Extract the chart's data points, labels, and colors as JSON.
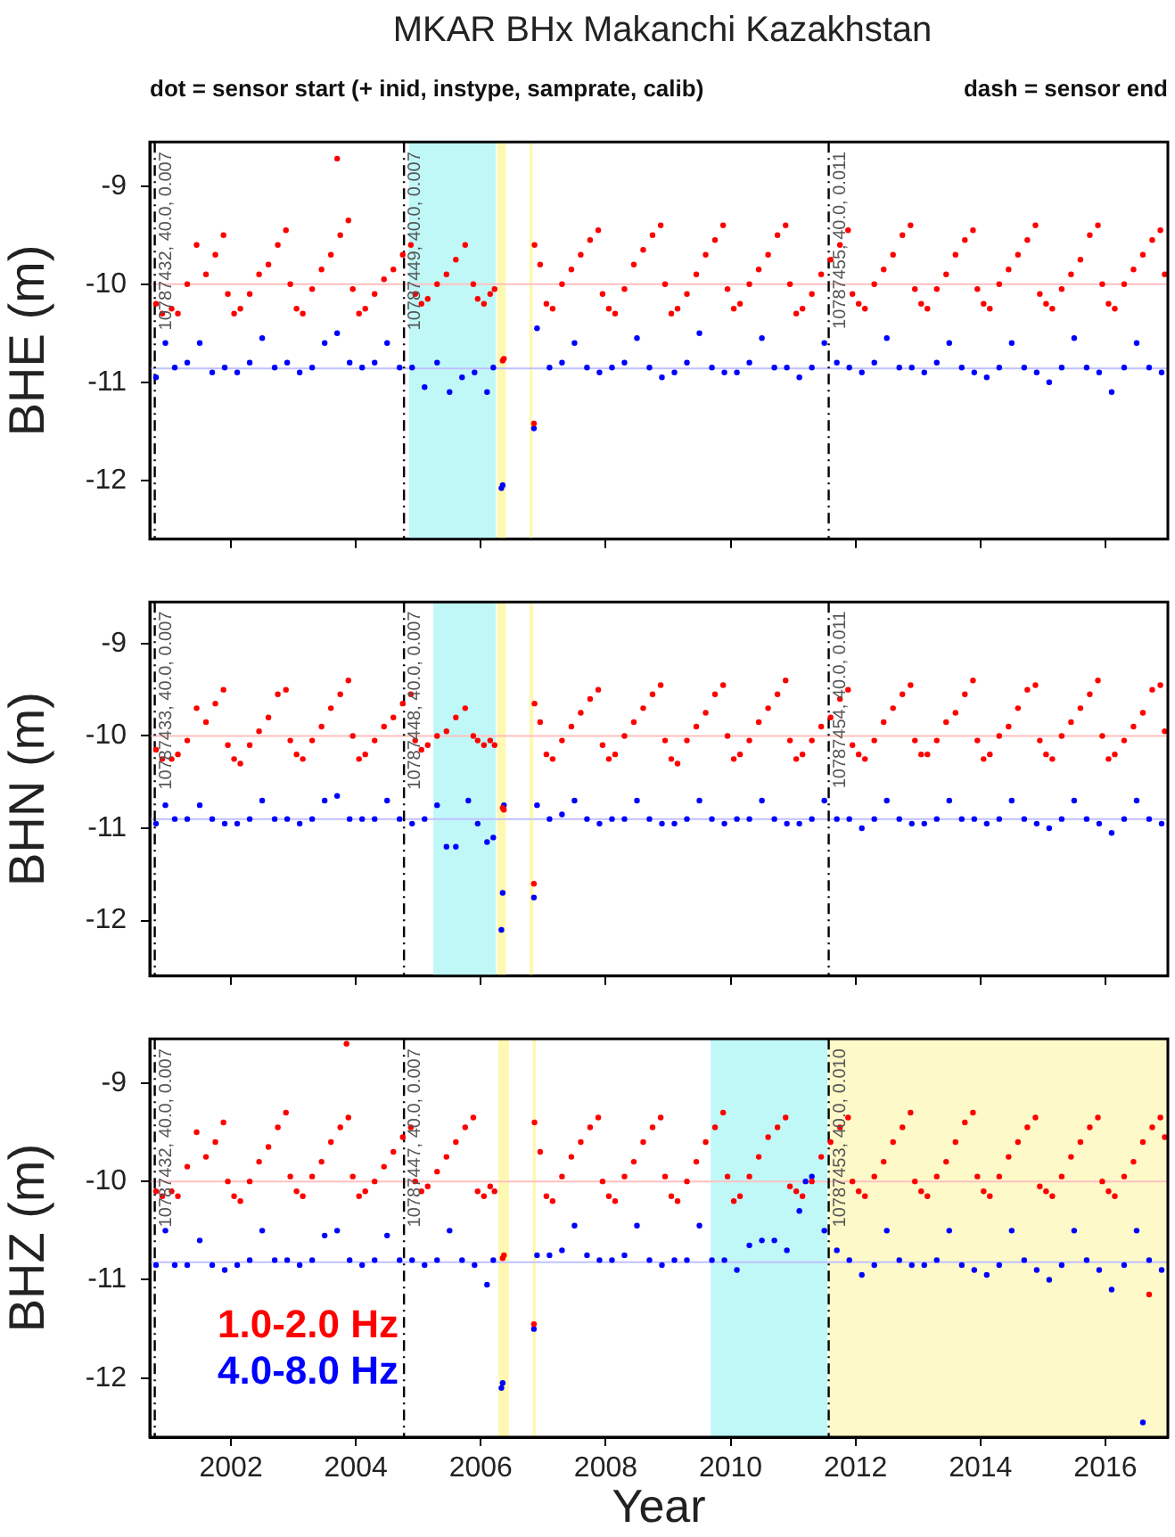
{
  "chart_data": [
    {
      "type": "scatter",
      "title": "MKAR BHx Makanchi Kazakhstan",
      "subtitle": "dot = sensor start (+ inid, instype, samprate, calib)",
      "annotations": [
        "dash = sensor end",
        {
          "text": "10787432, 40.0, 0.007",
          "x": 2000.78,
          "y": -8.65
        },
        {
          "text": "10787449, 40.0, 0.007",
          "x": 2004.77,
          "y": -8.65
        },
        {
          "text": "10787455, 40.0, 0.011",
          "x": 2011.57,
          "y": -8.65
        }
      ],
      "ylabel": "BHE (m)",
      "xlim": [
        2000.7,
        2017.0
      ],
      "xticks": [
        2002,
        2004,
        2006,
        2008,
        2010,
        2012,
        2014,
        2016
      ],
      "ylim": [
        -12.6,
        -8.55
      ],
      "yticks": [
        -12,
        -11,
        -10,
        -9
      ],
      "tick_labels": "y",
      "marker": "circle",
      "bands": [
        {
          "axis": "x",
          "from": 2004.85,
          "to": 2006.24,
          "color": "#c0f8f8"
        },
        {
          "axis": "x",
          "from": 2006.26,
          "to": 2006.4,
          "color": "#fff8b0"
        },
        {
          "axis": "x",
          "from": 2006.78,
          "to": 2006.83,
          "color": "#fff8b0"
        }
      ],
      "ref_lines": [
        {
          "axis": "y",
          "value": -10.0,
          "color": "#ffc0c0",
          "line_style": "solid"
        },
        {
          "axis": "y",
          "value": -10.86,
          "color": "#c0c0ff",
          "line_style": "solid"
        },
        {
          "axis": "x",
          "value": 2000.78,
          "color": "#000000",
          "line_style": "dashed"
        },
        {
          "axis": "x",
          "value": 2004.77,
          "color": "#000000",
          "line_style": "dashed"
        },
        {
          "axis": "x",
          "value": 2011.57,
          "color": "#000000",
          "line_style": "dashed"
        }
      ],
      "series": [
        {
          "color": "#ff0000",
          "x": [
            2000.8,
            2000.9,
            2001.05,
            2001.15,
            2001.3,
            2001.45,
            2001.6,
            2001.75,
            2001.88,
            2001.95,
            2002.05,
            2002.15,
            2002.3,
            2002.45,
            2002.6,
            2002.75,
            2002.88,
            2002.95,
            2003.05,
            2003.15,
            2003.3,
            2003.45,
            2003.6,
            2003.7,
            2003.75,
            2003.88,
            2003.95,
            2004.05,
            2004.15,
            2004.3,
            2004.45,
            2004.6,
            2004.75,
            2004.88,
            2004.95,
            2005.05,
            2005.15,
            2005.3,
            2005.45,
            2005.6,
            2005.75,
            2005.88,
            2005.95,
            2006.05,
            2006.15,
            2006.22,
            2006.35,
            2006.37,
            2006.85,
            2006.86,
            2006.95,
            2007.05,
            2007.15,
            2007.3,
            2007.45,
            2007.6,
            2007.75,
            2007.88,
            2007.95,
            2008.05,
            2008.15,
            2008.3,
            2008.45,
            2008.6,
            2008.75,
            2008.88,
            2008.95,
            2009.05,
            2009.15,
            2009.3,
            2009.45,
            2009.6,
            2009.75,
            2009.88,
            2009.95,
            2010.05,
            2010.15,
            2010.3,
            2010.45,
            2010.6,
            2010.75,
            2010.88,
            2010.95,
            2011.05,
            2011.15,
            2011.3,
            2011.45,
            2011.6,
            2011.75,
            2011.88,
            2011.95,
            2012.05,
            2012.15,
            2012.3,
            2012.45,
            2012.6,
            2012.75,
            2012.88,
            2012.95,
            2013.05,
            2013.15,
            2013.3,
            2013.45,
            2013.6,
            2013.75,
            2013.88,
            2013.95,
            2014.05,
            2014.15,
            2014.3,
            2014.45,
            2014.6,
            2014.75,
            2014.88,
            2014.95,
            2015.05,
            2015.15,
            2015.3,
            2015.45,
            2015.6,
            2015.75,
            2015.88,
            2015.95,
            2016.05,
            2016.15,
            2016.3,
            2016.45,
            2016.6,
            2016.75,
            2016.88,
            2016.95
          ],
          "values": [
            -10.2,
            -10.3,
            -10.25,
            -10.3,
            -10.0,
            -9.6,
            -9.9,
            -9.7,
            -9.5,
            -10.1,
            -10.3,
            -10.25,
            -10.1,
            -9.9,
            -9.8,
            -9.6,
            -9.45,
            -10.0,
            -10.25,
            -10.3,
            -10.05,
            -9.85,
            -9.7,
            -8.72,
            -9.5,
            -9.35,
            -10.05,
            -10.3,
            -10.25,
            -10.1,
            -9.95,
            -9.85,
            -9.7,
            -9.6,
            -10.1,
            -10.2,
            -10.15,
            -10.0,
            -9.9,
            -9.75,
            -9.6,
            -10.0,
            -10.15,
            -10.2,
            -10.1,
            -10.05,
            -10.78,
            -10.76,
            -11.42,
            -9.6,
            -9.8,
            -10.2,
            -10.25,
            -10.0,
            -9.85,
            -9.7,
            -9.55,
            -9.45,
            -10.1,
            -10.25,
            -10.3,
            -10.05,
            -9.8,
            -9.65,
            -9.5,
            -9.4,
            -10.0,
            -10.3,
            -10.25,
            -10.1,
            -9.9,
            -9.7,
            -9.55,
            -9.4,
            -10.05,
            -10.25,
            -10.2,
            -10.0,
            -9.85,
            -9.7,
            -9.5,
            -9.4,
            -10.0,
            -10.3,
            -10.25,
            -10.1,
            -9.9,
            -9.75,
            -9.6,
            -9.45,
            -10.1,
            -10.2,
            -10.25,
            -10.0,
            -9.85,
            -9.7,
            -9.5,
            -9.4,
            -10.05,
            -10.2,
            -10.25,
            -10.05,
            -9.9,
            -9.7,
            -9.55,
            -9.45,
            -10.05,
            -10.2,
            -10.25,
            -10.0,
            -9.85,
            -9.7,
            -9.55,
            -9.4,
            -10.1,
            -10.2,
            -10.25,
            -10.05,
            -9.9,
            -9.75,
            -9.5,
            -9.4,
            -10.0,
            -10.2,
            -10.25,
            -10.0,
            -9.85,
            -9.7,
            -9.55,
            -9.45,
            -9.9
          ]
        },
        {
          "color": "#0000ff",
          "x": [
            2000.8,
            2000.95,
            2001.1,
            2001.3,
            2001.5,
            2001.7,
            2001.9,
            2002.1,
            2002.3,
            2002.5,
            2002.7,
            2002.9,
            2003.1,
            2003.3,
            2003.5,
            2003.7,
            2003.9,
            2004.1,
            2004.3,
            2004.5,
            2004.7,
            2004.9,
            2005.1,
            2005.3,
            2005.5,
            2005.7,
            2005.9,
            2006.1,
            2006.2,
            2006.33,
            2006.35,
            2006.85,
            2006.9,
            2007.1,
            2007.3,
            2007.5,
            2007.7,
            2007.9,
            2008.1,
            2008.3,
            2008.5,
            2008.7,
            2008.9,
            2009.1,
            2009.3,
            2009.5,
            2009.7,
            2009.9,
            2010.1,
            2010.3,
            2010.5,
            2010.7,
            2010.9,
            2011.1,
            2011.3,
            2011.5,
            2011.7,
            2011.9,
            2012.1,
            2012.3,
            2012.5,
            2012.7,
            2012.9,
            2013.1,
            2013.3,
            2013.5,
            2013.7,
            2013.9,
            2014.1,
            2014.3,
            2014.5,
            2014.7,
            2014.9,
            2015.1,
            2015.3,
            2015.5,
            2015.7,
            2015.9,
            2016.1,
            2016.3,
            2016.5,
            2016.7,
            2016.9
          ],
          "values": [
            -10.95,
            -10.6,
            -10.85,
            -10.8,
            -10.6,
            -10.9,
            -10.85,
            -10.9,
            -10.8,
            -10.55,
            -10.85,
            -10.8,
            -10.9,
            -10.85,
            -10.6,
            -10.5,
            -10.8,
            -10.85,
            -10.8,
            -10.6,
            -10.85,
            -10.85,
            -11.05,
            -10.8,
            -11.1,
            -10.95,
            -10.9,
            -11.1,
            -10.85,
            -12.08,
            -12.05,
            -11.47,
            -10.45,
            -10.85,
            -10.8,
            -10.6,
            -10.85,
            -10.9,
            -10.85,
            -10.8,
            -10.55,
            -10.85,
            -10.95,
            -10.9,
            -10.8,
            -10.5,
            -10.85,
            -10.9,
            -10.9,
            -10.8,
            -10.55,
            -10.85,
            -10.85,
            -10.95,
            -10.85,
            -10.6,
            -10.8,
            -10.85,
            -10.9,
            -10.8,
            -10.55,
            -10.85,
            -10.85,
            -10.9,
            -10.8,
            -10.6,
            -10.85,
            -10.9,
            -10.95,
            -10.85,
            -10.6,
            -10.85,
            -10.9,
            -11.0,
            -10.85,
            -10.55,
            -10.85,
            -10.9,
            -11.1,
            -10.85,
            -10.6,
            -10.85,
            -10.9
          ]
        }
      ]
    },
    {
      "type": "scatter",
      "annotations": [
        {
          "text": "10787433, 40.0, 0.007",
          "x": 2000.78,
          "y": -8.65
        },
        {
          "text": "10787448, 40.0, 0.007",
          "x": 2004.77,
          "y": -8.65
        },
        {
          "text": "10787454, 40.0, 0.011",
          "x": 2011.57,
          "y": -8.65
        }
      ],
      "ylabel": "BHN (m)",
      "xlim": [
        2000.7,
        2017.0
      ],
      "xticks": [
        2002,
        2004,
        2006,
        2008,
        2010,
        2012,
        2014,
        2016
      ],
      "ylim": [
        -12.6,
        -8.55
      ],
      "yticks": [
        -12,
        -11,
        -10,
        -9
      ],
      "tick_labels": "y",
      "marker": "circle",
      "bands": [
        {
          "axis": "x",
          "from": 2005.24,
          "to": 2006.24,
          "color": "#c0f8f8"
        },
        {
          "axis": "x",
          "from": 2006.26,
          "to": 2006.4,
          "color": "#fff8b0"
        },
        {
          "axis": "x",
          "from": 2006.78,
          "to": 2006.84,
          "color": "#fff8b0"
        }
      ],
      "ref_lines": [
        {
          "axis": "y",
          "value": -10.0,
          "color": "#ffc0c0",
          "line_style": "solid"
        },
        {
          "axis": "y",
          "value": -10.9,
          "color": "#c0c0ff",
          "line_style": "solid"
        },
        {
          "axis": "x",
          "value": 2000.78,
          "color": "#000000",
          "line_style": "dashed"
        },
        {
          "axis": "x",
          "value": 2004.77,
          "color": "#000000",
          "line_style": "dashed"
        },
        {
          "axis": "x",
          "value": 2011.57,
          "color": "#000000",
          "line_style": "dashed"
        }
      ],
      "series": [
        {
          "color": "#ff0000",
          "x": [
            2000.8,
            2000.9,
            2001.05,
            2001.15,
            2001.3,
            2001.45,
            2001.6,
            2001.75,
            2001.88,
            2001.95,
            2002.05,
            2002.15,
            2002.3,
            2002.45,
            2002.6,
            2002.75,
            2002.88,
            2002.95,
            2003.05,
            2003.15,
            2003.3,
            2003.45,
            2003.6,
            2003.75,
            2003.88,
            2003.95,
            2004.05,
            2004.15,
            2004.3,
            2004.45,
            2004.6,
            2004.75,
            2004.88,
            2004.95,
            2005.05,
            2005.15,
            2005.3,
            2005.45,
            2005.6,
            2005.75,
            2005.88,
            2005.95,
            2006.05,
            2006.15,
            2006.22,
            2006.35,
            2006.37,
            2006.85,
            2006.86,
            2006.95,
            2007.05,
            2007.15,
            2007.3,
            2007.45,
            2007.6,
            2007.75,
            2007.88,
            2007.95,
            2008.05,
            2008.15,
            2008.3,
            2008.45,
            2008.6,
            2008.75,
            2008.88,
            2008.95,
            2009.05,
            2009.15,
            2009.3,
            2009.45,
            2009.6,
            2009.75,
            2009.88,
            2009.95,
            2010.05,
            2010.15,
            2010.3,
            2010.45,
            2010.6,
            2010.75,
            2010.88,
            2010.95,
            2011.05,
            2011.15,
            2011.3,
            2011.45,
            2011.6,
            2011.75,
            2011.88,
            2011.95,
            2012.05,
            2012.15,
            2012.3,
            2012.45,
            2012.6,
            2012.75,
            2012.88,
            2012.95,
            2013.05,
            2013.15,
            2013.3,
            2013.45,
            2013.6,
            2013.75,
            2013.88,
            2013.95,
            2014.05,
            2014.15,
            2014.3,
            2014.45,
            2014.6,
            2014.75,
            2014.88,
            2014.95,
            2015.05,
            2015.15,
            2015.3,
            2015.45,
            2015.6,
            2015.75,
            2015.88,
            2015.95,
            2016.05,
            2016.15,
            2016.3,
            2016.45,
            2016.6,
            2016.75,
            2016.88,
            2016.95
          ],
          "values": [
            -10.15,
            -10.25,
            -10.25,
            -10.2,
            -10.05,
            -9.7,
            -9.85,
            -9.65,
            -9.5,
            -10.1,
            -10.25,
            -10.3,
            -10.1,
            -9.95,
            -9.8,
            -9.55,
            -9.5,
            -10.05,
            -10.2,
            -10.25,
            -10.05,
            -9.9,
            -9.7,
            -9.55,
            -9.4,
            -10.0,
            -10.25,
            -10.2,
            -10.05,
            -9.9,
            -9.8,
            -9.65,
            -9.55,
            -10.05,
            -10.15,
            -10.1,
            -10.0,
            -9.95,
            -9.8,
            -9.7,
            -10.0,
            -10.05,
            -10.1,
            -10.05,
            -10.1,
            -10.78,
            -10.8,
            -11.6,
            -9.65,
            -9.85,
            -10.2,
            -10.25,
            -10.05,
            -9.9,
            -9.75,
            -9.6,
            -9.5,
            -10.1,
            -10.25,
            -10.2,
            -10.0,
            -9.85,
            -9.7,
            -9.55,
            -9.45,
            -10.05,
            -10.25,
            -10.3,
            -10.05,
            -9.9,
            -9.75,
            -9.55,
            -9.45,
            -10.0,
            -10.25,
            -10.2,
            -10.05,
            -9.85,
            -9.7,
            -9.55,
            -9.4,
            -10.05,
            -10.25,
            -10.2,
            -10.05,
            -9.9,
            -9.8,
            -9.6,
            -9.5,
            -10.1,
            -10.2,
            -10.25,
            -10.05,
            -9.85,
            -9.7,
            -9.55,
            -9.45,
            -10.05,
            -10.2,
            -10.2,
            -10.05,
            -9.85,
            -9.75,
            -9.55,
            -9.4,
            -10.05,
            -10.25,
            -10.2,
            -10.0,
            -9.9,
            -9.7,
            -9.5,
            -9.45,
            -10.05,
            -10.2,
            -10.25,
            -10.0,
            -9.85,
            -9.7,
            -9.55,
            -9.4,
            -10.0,
            -10.25,
            -10.2,
            -10.05,
            -9.9,
            -9.75,
            -9.5,
            -9.45,
            -9.95
          ]
        },
        {
          "color": "#0000ff",
          "x": [
            2000.8,
            2000.95,
            2001.1,
            2001.3,
            2001.5,
            2001.7,
            2001.9,
            2002.1,
            2002.3,
            2002.5,
            2002.7,
            2002.9,
            2003.1,
            2003.3,
            2003.5,
            2003.7,
            2003.9,
            2004.1,
            2004.3,
            2004.5,
            2004.7,
            2004.9,
            2005.1,
            2005.3,
            2005.45,
            2005.6,
            2005.8,
            2005.95,
            2006.1,
            2006.2,
            2006.33,
            2006.35,
            2006.37,
            2006.85,
            2006.9,
            2007.1,
            2007.3,
            2007.5,
            2007.7,
            2007.9,
            2008.1,
            2008.3,
            2008.5,
            2008.7,
            2008.9,
            2009.1,
            2009.3,
            2009.5,
            2009.7,
            2009.9,
            2010.1,
            2010.3,
            2010.5,
            2010.7,
            2010.9,
            2011.1,
            2011.3,
            2011.5,
            2011.7,
            2011.9,
            2012.1,
            2012.3,
            2012.5,
            2012.7,
            2012.9,
            2013.1,
            2013.3,
            2013.5,
            2013.7,
            2013.9,
            2014.1,
            2014.3,
            2014.5,
            2014.7,
            2014.9,
            2015.1,
            2015.3,
            2015.5,
            2015.7,
            2015.9,
            2016.1,
            2016.3,
            2016.5,
            2016.7,
            2016.9
          ],
          "values": [
            -10.95,
            -10.75,
            -10.9,
            -10.9,
            -10.75,
            -10.9,
            -10.95,
            -10.95,
            -10.9,
            -10.7,
            -10.9,
            -10.9,
            -10.95,
            -10.9,
            -10.7,
            -10.65,
            -10.9,
            -10.9,
            -10.9,
            -10.7,
            -10.9,
            -10.95,
            -10.9,
            -10.75,
            -11.2,
            -11.2,
            -10.7,
            -10.95,
            -11.15,
            -11.1,
            -12.1,
            -11.7,
            -10.75,
            -11.75,
            -10.75,
            -10.9,
            -10.85,
            -10.7,
            -10.9,
            -10.95,
            -10.9,
            -10.9,
            -10.7,
            -10.9,
            -10.95,
            -10.95,
            -10.9,
            -10.7,
            -10.9,
            -10.95,
            -10.9,
            -10.9,
            -10.7,
            -10.9,
            -10.95,
            -10.95,
            -10.9,
            -10.7,
            -10.9,
            -10.9,
            -11.0,
            -10.9,
            -10.7,
            -10.9,
            -10.95,
            -10.95,
            -10.9,
            -10.7,
            -10.9,
            -10.9,
            -10.95,
            -10.9,
            -10.7,
            -10.9,
            -10.95,
            -11.0,
            -10.9,
            -10.7,
            -10.9,
            -10.95,
            -11.05,
            -10.9,
            -10.7,
            -10.9,
            -10.95
          ]
        }
      ]
    },
    {
      "type": "scatter",
      "xlabel": "Year",
      "annotations": [
        {
          "text": "10787432, 40.0, 0.007",
          "x": 2000.78,
          "y": -8.65
        },
        {
          "text": "10787447, 40.0, 0.007",
          "x": 2004.77,
          "y": -8.65
        },
        {
          "text": "10787453, 40.0, 0.010",
          "x": 2011.57,
          "y": -8.65
        }
      ],
      "ylabel": "BHZ (m)",
      "xlim": [
        2000.7,
        2017.0
      ],
      "xticks": [
        2002,
        2004,
        2006,
        2008,
        2010,
        2012,
        2014,
        2016
      ],
      "ylim": [
        -12.6,
        -8.55
      ],
      "yticks": [
        -12,
        -11,
        -10,
        -9
      ],
      "marker": "circle",
      "legend": "bottom left",
      "bands": [
        {
          "axis": "x",
          "from": 2006.28,
          "to": 2006.45,
          "color": "#fff8b0"
        },
        {
          "axis": "x",
          "from": 2006.83,
          "to": 2006.88,
          "color": "#fff8b0"
        },
        {
          "axis": "x",
          "from": 2009.68,
          "to": 2011.55,
          "color": "#c0f8f8"
        },
        {
          "axis": "x",
          "from": 2011.57,
          "to": 2017.0,
          "color": "#fdf9c8"
        }
      ],
      "ref_lines": [
        {
          "axis": "y",
          "value": -10.0,
          "color": "#ffc0c0",
          "line_style": "solid"
        },
        {
          "axis": "y",
          "value": -10.82,
          "color": "#c0c0ff",
          "line_style": "solid"
        },
        {
          "axis": "x",
          "value": 2000.78,
          "color": "#000000",
          "line_style": "dashed"
        },
        {
          "axis": "x",
          "value": 2004.77,
          "color": "#000000",
          "line_style": "dashed"
        },
        {
          "axis": "x",
          "value": 2011.57,
          "color": "#000000",
          "line_style": "dashed"
        }
      ],
      "series": [
        {
          "name": "1.0-2.0 Hz",
          "color": "#ff0000",
          "x": [
            2000.8,
            2000.9,
            2001.05,
            2001.15,
            2001.3,
            2001.45,
            2001.6,
            2001.75,
            2001.88,
            2001.95,
            2002.05,
            2002.15,
            2002.3,
            2002.45,
            2002.6,
            2002.75,
            2002.88,
            2002.95,
            2003.05,
            2003.15,
            2003.3,
            2003.45,
            2003.6,
            2003.75,
            2003.85,
            2003.88,
            2003.95,
            2004.05,
            2004.15,
            2004.3,
            2004.45,
            2004.6,
            2004.75,
            2004.88,
            2004.95,
            2005.05,
            2005.15,
            2005.3,
            2005.45,
            2005.6,
            2005.75,
            2005.88,
            2005.95,
            2006.05,
            2006.15,
            2006.22,
            2006.35,
            2006.37,
            2006.85,
            2006.86,
            2006.95,
            2007.05,
            2007.15,
            2007.3,
            2007.45,
            2007.6,
            2007.75,
            2007.88,
            2007.95,
            2008.05,
            2008.15,
            2008.3,
            2008.45,
            2008.6,
            2008.75,
            2008.88,
            2008.95,
            2009.05,
            2009.15,
            2009.3,
            2009.45,
            2009.6,
            2009.75,
            2009.88,
            2009.95,
            2010.05,
            2010.15,
            2010.3,
            2010.45,
            2010.6,
            2010.75,
            2010.88,
            2010.95,
            2011.05,
            2011.15,
            2011.3,
            2011.45,
            2011.6,
            2011.75,
            2011.88,
            2011.95,
            2012.05,
            2012.15,
            2012.3,
            2012.45,
            2012.6,
            2012.75,
            2012.88,
            2012.95,
            2013.05,
            2013.15,
            2013.3,
            2013.45,
            2013.6,
            2013.75,
            2013.88,
            2013.95,
            2014.05,
            2014.15,
            2014.3,
            2014.45,
            2014.6,
            2014.75,
            2014.88,
            2014.95,
            2015.05,
            2015.15,
            2015.3,
            2015.45,
            2015.6,
            2015.75,
            2015.88,
            2015.95,
            2016.05,
            2016.15,
            2016.3,
            2016.45,
            2016.6,
            2016.7,
            2016.75,
            2016.88,
            2016.95
          ],
          "values": [
            -10.1,
            -10.15,
            -10.1,
            -10.15,
            -9.85,
            -9.5,
            -9.75,
            -9.6,
            -9.4,
            -10.0,
            -10.15,
            -10.2,
            -10.0,
            -9.8,
            -9.65,
            -9.45,
            -9.3,
            -9.95,
            -10.1,
            -10.15,
            -9.95,
            -9.8,
            -9.6,
            -9.45,
            -8.6,
            -9.35,
            -9.95,
            -10.15,
            -10.1,
            -10.0,
            -9.85,
            -9.7,
            -9.55,
            -9.45,
            -10.0,
            -10.1,
            -10.05,
            -9.9,
            -9.75,
            -9.6,
            -9.45,
            -9.35,
            -10.1,
            -10.15,
            -10.05,
            -10.1,
            -10.78,
            -10.75,
            -11.45,
            -9.4,
            -9.7,
            -10.15,
            -10.2,
            -9.95,
            -9.75,
            -9.6,
            -9.45,
            -9.35,
            -10.0,
            -10.15,
            -10.2,
            -9.95,
            -9.8,
            -9.6,
            -9.45,
            -9.35,
            -9.95,
            -10.15,
            -10.2,
            -10.0,
            -9.8,
            -9.6,
            -9.45,
            -9.3,
            -9.95,
            -10.2,
            -10.15,
            -9.95,
            -9.75,
            -9.55,
            -9.45,
            -9.35,
            -10.05,
            -10.1,
            -10.15,
            -10.0,
            -9.75,
            -9.6,
            -9.45,
            -9.35,
            -10.0,
            -10.1,
            -10.15,
            -9.95,
            -9.8,
            -9.6,
            -9.45,
            -9.3,
            -10.0,
            -10.1,
            -10.15,
            -9.95,
            -9.8,
            -9.6,
            -9.4,
            -9.3,
            -9.95,
            -10.1,
            -10.15,
            -9.95,
            -9.75,
            -9.6,
            -9.45,
            -9.35,
            -10.05,
            -10.1,
            -10.15,
            -9.95,
            -9.75,
            -9.6,
            -9.45,
            -9.35,
            -10.0,
            -10.1,
            -10.15,
            -9.95,
            -9.8,
            -9.6,
            -11.15,
            -9.45,
            -9.35,
            -9.55
          ]
        },
        {
          "name": "4.0-8.0 Hz",
          "color": "#0000ff",
          "x": [
            2000.8,
            2000.95,
            2001.1,
            2001.3,
            2001.5,
            2001.7,
            2001.9,
            2002.1,
            2002.3,
            2002.5,
            2002.7,
            2002.9,
            2003.1,
            2003.3,
            2003.5,
            2003.7,
            2003.9,
            2004.1,
            2004.3,
            2004.5,
            2004.7,
            2004.9,
            2005.1,
            2005.3,
            2005.5,
            2005.7,
            2005.9,
            2006.1,
            2006.2,
            2006.33,
            2006.35,
            2006.85,
            2006.9,
            2007.1,
            2007.3,
            2007.5,
            2007.7,
            2007.9,
            2008.1,
            2008.3,
            2008.5,
            2008.7,
            2008.9,
            2009.1,
            2009.3,
            2009.5,
            2009.7,
            2009.9,
            2010.1,
            2010.3,
            2010.5,
            2010.7,
            2010.9,
            2011.1,
            2011.2,
            2011.3,
            2011.5,
            2011.7,
            2011.9,
            2012.1,
            2012.3,
            2012.5,
            2012.7,
            2012.9,
            2013.1,
            2013.3,
            2013.5,
            2013.7,
            2013.9,
            2014.1,
            2014.3,
            2014.5,
            2014.7,
            2014.9,
            2015.1,
            2015.3,
            2015.5,
            2015.7,
            2015.9,
            2016.1,
            2016.3,
            2016.5,
            2016.6,
            2016.7,
            2016.9
          ],
          "values": [
            -10.85,
            -10.5,
            -10.85,
            -10.85,
            -10.6,
            -10.85,
            -10.9,
            -10.85,
            -10.8,
            -10.5,
            -10.8,
            -10.8,
            -10.85,
            -10.8,
            -10.55,
            -10.5,
            -10.8,
            -10.85,
            -10.8,
            -10.55,
            -10.8,
            -10.8,
            -10.85,
            -10.8,
            -10.5,
            -10.8,
            -10.85,
            -11.05,
            -10.8,
            -12.1,
            -12.05,
            -11.5,
            -10.75,
            -10.75,
            -10.7,
            -10.45,
            -10.75,
            -10.8,
            -10.8,
            -10.75,
            -10.45,
            -10.8,
            -10.85,
            -10.8,
            -10.8,
            -10.45,
            -10.8,
            -10.8,
            -10.9,
            -10.65,
            -10.6,
            -10.6,
            -10.7,
            -10.3,
            -10.0,
            -9.95,
            -10.5,
            -10.7,
            -10.8,
            -10.95,
            -10.85,
            -10.5,
            -10.8,
            -10.85,
            -10.85,
            -10.8,
            -10.5,
            -10.85,
            -10.9,
            -10.95,
            -10.85,
            -10.5,
            -10.8,
            -10.9,
            -11.0,
            -10.85,
            -10.5,
            -10.8,
            -10.9,
            -11.1,
            -10.85,
            -10.5,
            -12.45,
            -10.8,
            -10.9
          ]
        }
      ]
    }
  ]
}
